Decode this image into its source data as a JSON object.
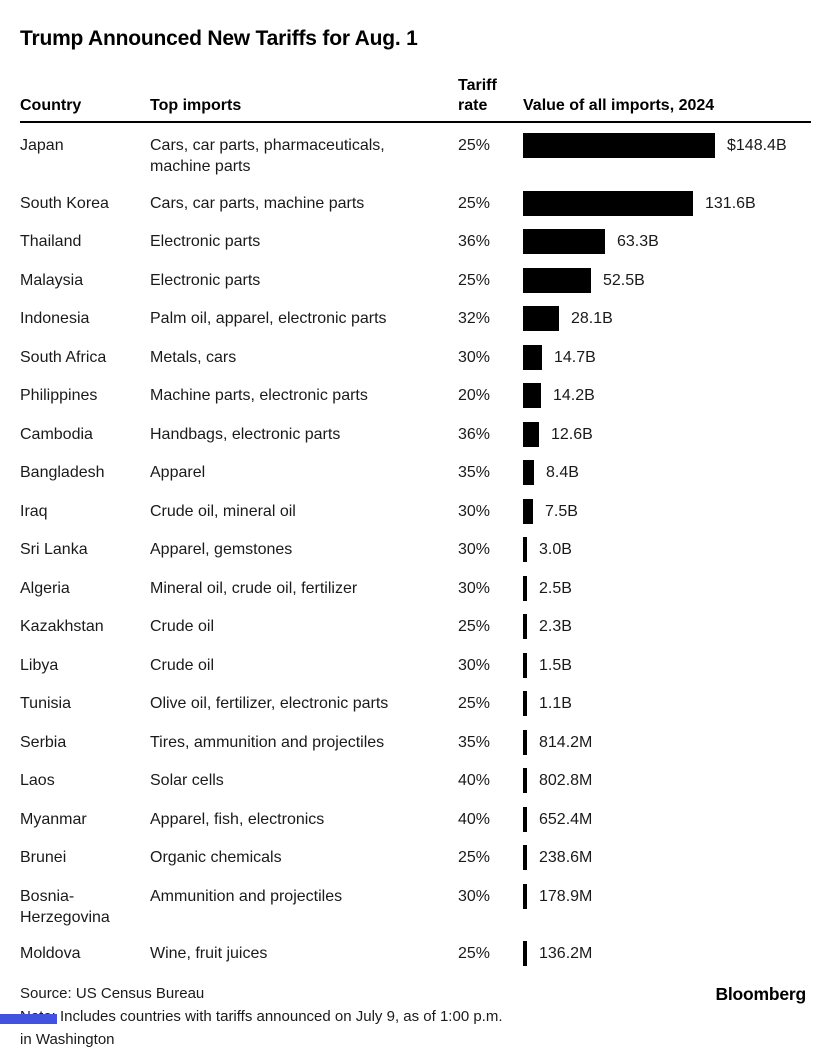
{
  "title": "Trump Announced New Tariffs for Aug. 1",
  "columns": {
    "country": "Country",
    "imports": "Top imports",
    "tariff_line1": "Tariff",
    "tariff_line2": "rate",
    "value": "Value of all imports, 2024"
  },
  "rows": [
    {
      "country": "Japan",
      "imports": "Cars, car parts, pharmaceuticals, machine parts",
      "tariff": "25%",
      "value_label": "$148.4B",
      "value_billions": 148.4
    },
    {
      "country": "South Korea",
      "imports": "Cars, car parts, machine parts",
      "tariff": "25%",
      "value_label": "131.6B",
      "value_billions": 131.6
    },
    {
      "country": "Thailand",
      "imports": "Electronic parts",
      "tariff": "36%",
      "value_label": "63.3B",
      "value_billions": 63.3
    },
    {
      "country": "Malaysia",
      "imports": "Electronic parts",
      "tariff": "25%",
      "value_label": "52.5B",
      "value_billions": 52.5
    },
    {
      "country": "Indonesia",
      "imports": "Palm oil, apparel, electronic parts",
      "tariff": "32%",
      "value_label": "28.1B",
      "value_billions": 28.1
    },
    {
      "country": "South Africa",
      "imports": "Metals, cars",
      "tariff": "30%",
      "value_label": "14.7B",
      "value_billions": 14.7
    },
    {
      "country": "Philippines",
      "imports": "Machine parts, electronic parts",
      "tariff": "20%",
      "value_label": "14.2B",
      "value_billions": 14.2
    },
    {
      "country": "Cambodia",
      "imports": "Handbags, electronic parts",
      "tariff": "36%",
      "value_label": "12.6B",
      "value_billions": 12.6
    },
    {
      "country": "Bangladesh",
      "imports": "Apparel",
      "tariff": "35%",
      "value_label": "8.4B",
      "value_billions": 8.4
    },
    {
      "country": "Iraq",
      "imports": "Crude oil, mineral oil",
      "tariff": "30%",
      "value_label": "7.5B",
      "value_billions": 7.5
    },
    {
      "country": "Sri Lanka",
      "imports": "Apparel, gemstones",
      "tariff": "30%",
      "value_label": "3.0B",
      "value_billions": 3.0
    },
    {
      "country": "Algeria",
      "imports": "Mineral oil, crude oil, fertilizer",
      "tariff": "30%",
      "value_label": "2.5B",
      "value_billions": 2.5
    },
    {
      "country": "Kazakhstan",
      "imports": "Crude oil",
      "tariff": "25%",
      "value_label": "2.3B",
      "value_billions": 2.3
    },
    {
      "country": "Libya",
      "imports": "Crude oil",
      "tariff": "30%",
      "value_label": "1.5B",
      "value_billions": 1.5
    },
    {
      "country": "Tunisia",
      "imports": "Olive oil, fertilizer, electronic parts",
      "tariff": "25%",
      "value_label": "1.1B",
      "value_billions": 1.1
    },
    {
      "country": "Serbia",
      "imports": "Tires, ammunition and projectiles",
      "tariff": "35%",
      "value_label": "814.2M",
      "value_billions": 0.8142
    },
    {
      "country": "Laos",
      "imports": "Solar cells",
      "tariff": "40%",
      "value_label": "802.8M",
      "value_billions": 0.8028
    },
    {
      "country": "Myanmar",
      "imports": "Apparel, fish, electronics",
      "tariff": "40%",
      "value_label": "652.4M",
      "value_billions": 0.6524
    },
    {
      "country": "Brunei",
      "imports": "Organic chemicals",
      "tariff": "25%",
      "value_label": "238.6M",
      "value_billions": 0.2386
    },
    {
      "country": "Bosnia-Herzegovina",
      "imports": "Ammunition and projectiles",
      "tariff": "30%",
      "value_label": "178.9M",
      "value_billions": 0.1789
    },
    {
      "country": "Moldova",
      "imports": "Wine, fruit juices",
      "tariff": "25%",
      "value_label": "136.2M",
      "value_billions": 0.1362
    }
  ],
  "footer": {
    "source": "Source: US Census Bureau",
    "note_line1": "Note: Includes countries with tariffs announced on July 9, as of 1:00 p.m.",
    "note_line2": "in Washington",
    "brand": "Bloomberg"
  },
  "colors": {
    "bar": "#000000",
    "text": "#1a1a1a",
    "rule": "#000000",
    "artifact_blue": "#4152e0"
  },
  "chart_data": {
    "type": "bar",
    "orientation": "horizontal",
    "title": "Trump Announced New Tariffs for Aug. 1",
    "xlabel": "Value of all imports, 2024",
    "ylabel": "Country",
    "xlim": [
      0,
      148.4
    ],
    "grid": false,
    "legend": false,
    "categories": [
      "Japan",
      "South Korea",
      "Thailand",
      "Malaysia",
      "Indonesia",
      "South Africa",
      "Philippines",
      "Cambodia",
      "Bangladesh",
      "Iraq",
      "Sri Lanka",
      "Algeria",
      "Kazakhstan",
      "Libya",
      "Tunisia",
      "Serbia",
      "Laos",
      "Myanmar",
      "Brunei",
      "Bosnia-Herzegovina",
      "Moldova"
    ],
    "series": [
      {
        "name": "Value of all imports, 2024 (USD billions)",
        "values": [
          148.4,
          131.6,
          63.3,
          52.5,
          28.1,
          14.7,
          14.2,
          12.6,
          8.4,
          7.5,
          3.0,
          2.5,
          2.3,
          1.5,
          1.1,
          0.8142,
          0.8028,
          0.6524,
          0.2386,
          0.1789,
          0.1362
        ]
      },
      {
        "name": "Tariff rate (%)",
        "values": [
          25,
          25,
          36,
          25,
          32,
          30,
          20,
          36,
          35,
          30,
          30,
          30,
          25,
          30,
          25,
          35,
          40,
          40,
          25,
          30,
          25
        ]
      }
    ],
    "annotations": {
      "top_imports": [
        "Cars, car parts, pharmaceuticals, machine parts",
        "Cars, car parts, machine parts",
        "Electronic parts",
        "Electronic parts",
        "Palm oil, apparel, electronic parts",
        "Metals, cars",
        "Machine parts, electronic parts",
        "Handbags, electronic parts",
        "Apparel",
        "Crude oil, mineral oil",
        "Apparel, gemstones",
        "Mineral oil, crude oil, fertilizer",
        "Crude oil",
        "Crude oil",
        "Olive oil, fertilizer, electronic parts",
        "Tires, ammunition and projectiles",
        "Solar cells",
        "Apparel, fish, electronics",
        "Organic chemicals",
        "Ammunition and projectiles",
        "Wine, fruit juices"
      ],
      "value_labels": [
        "$148.4B",
        "131.6B",
        "63.3B",
        "52.5B",
        "28.1B",
        "14.7B",
        "14.2B",
        "12.6B",
        "8.4B",
        "7.5B",
        "3.0B",
        "2.5B",
        "2.3B",
        "1.5B",
        "1.1B",
        "814.2M",
        "802.8M",
        "652.4M",
        "238.6M",
        "178.9M",
        "136.2M"
      ]
    }
  }
}
